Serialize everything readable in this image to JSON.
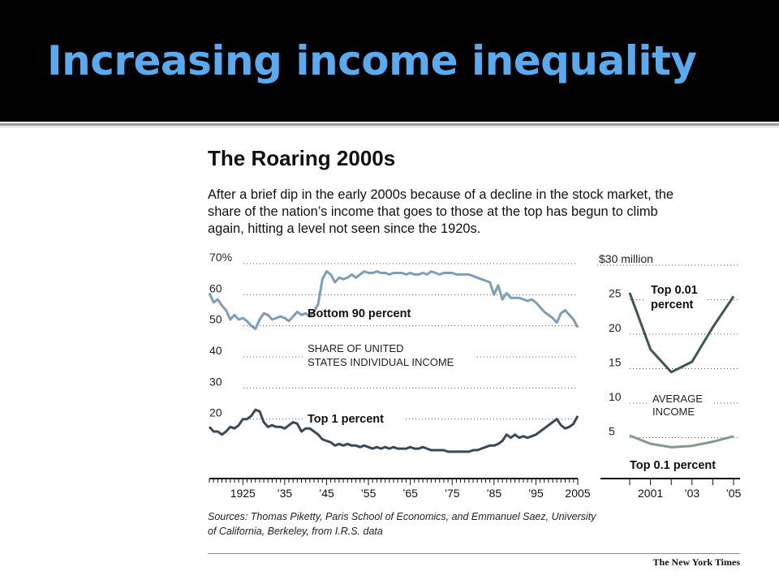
{
  "slide": {
    "title": "Increasing income inequality"
  },
  "figure": {
    "title": "The Roaring 2000s",
    "subtitle": "After a brief dip in the early 2000s because of a decline in the stock market, the share of the nation’s income that goes to those at the top has begun to climb again, hitting a level not seen since the 1920s.",
    "source": "Sources: Thomas Piketty, Paris School of Economics, and Emmanuel Saez, University of California, Berkeley, from I.R.S. data",
    "credit": "The New York Times"
  },
  "colors": {
    "bottom90": "#7f9db8",
    "top1": "#3a4a55",
    "top001": "#3d5a47",
    "top01": "#7f9c88",
    "title": "#5aaaf0"
  },
  "chart_data": [
    {
      "type": "line",
      "annotation": "SHARE OF UNITED STATES INDIVIDUAL INCOME",
      "yticks": [
        {
          "label": "70%",
          "value": 70
        },
        {
          "label": "60",
          "value": 60
        },
        {
          "label": "50",
          "value": 50
        },
        {
          "label": "40",
          "value": 40
        },
        {
          "label": "30",
          "value": 30
        },
        {
          "label": "20",
          "value": 20
        }
      ],
      "xticks": [
        {
          "label": "1925",
          "value": 1925
        },
        {
          "label": "’35",
          "value": 1935
        },
        {
          "label": "’45",
          "value": 1945
        },
        {
          "label": "’55",
          "value": 1955
        },
        {
          "label": "’65",
          "value": 1965
        },
        {
          "label": "’75",
          "value": 1975
        },
        {
          "label": "’85",
          "value": 1985
        },
        {
          "label": "’95",
          "value": 1995
        },
        {
          "label": "2005",
          "value": 2005
        }
      ],
      "xlim": [
        1917,
        2005
      ],
      "ylim": [
        10,
        70
      ],
      "series": [
        {
          "name": "Bottom 90 percent",
          "x": [
            1917,
            1918,
            1919,
            1920,
            1921,
            1922,
            1923,
            1924,
            1925,
            1926,
            1927,
            1928,
            1929,
            1930,
            1931,
            1932,
            1933,
            1934,
            1935,
            1936,
            1937,
            1938,
            1939,
            1940,
            1941,
            1942,
            1943,
            1944,
            1945,
            1946,
            1947,
            1948,
            1949,
            1950,
            1951,
            1952,
            1953,
            1954,
            1955,
            1956,
            1957,
            1958,
            1959,
            1960,
            1961,
            1962,
            1963,
            1964,
            1965,
            1966,
            1967,
            1968,
            1969,
            1970,
            1971,
            1972,
            1973,
            1974,
            1975,
            1976,
            1977,
            1978,
            1979,
            1980,
            1981,
            1982,
            1983,
            1984,
            1985,
            1986,
            1987,
            1988,
            1989,
            1990,
            1991,
            1992,
            1993,
            1994,
            1995,
            1996,
            1997,
            1998,
            1999,
            2000,
            2001,
            2002,
            2003,
            2004,
            2005
          ],
          "values": [
            60.5,
            57.5,
            58.5,
            56.5,
            55,
            52,
            53.5,
            52,
            52.5,
            51.5,
            50,
            49,
            52,
            54,
            53.5,
            52,
            52.5,
            53,
            52.5,
            51.5,
            53,
            54.5,
            53.5,
            54,
            53,
            54.5,
            57,
            65,
            67.5,
            66.5,
            64,
            65.5,
            65,
            65.5,
            66.5,
            65.5,
            66.5,
            67.5,
            67,
            67,
            67.5,
            67,
            67,
            66.5,
            67,
            67,
            67,
            66.5,
            67,
            66.5,
            66.5,
            67,
            66.5,
            67.5,
            67,
            66.5,
            67,
            67,
            67,
            66.5,
            66.5,
            66.5,
            66.5,
            66,
            65.5,
            65,
            64.5,
            64,
            60,
            63,
            58.5,
            60.5,
            59,
            59,
            59,
            58.5,
            58,
            58.5,
            57.5,
            56,
            54.5,
            53.5,
            52.5,
            51,
            54,
            55,
            53.5,
            52,
            49.5
          ]
        },
        {
          "name": "Top 1 percent",
          "x": [
            1917,
            1918,
            1919,
            1920,
            1921,
            1922,
            1923,
            1924,
            1925,
            1926,
            1927,
            1928,
            1929,
            1930,
            1931,
            1932,
            1933,
            1934,
            1935,
            1936,
            1937,
            1938,
            1939,
            1940,
            1941,
            1942,
            1943,
            1944,
            1945,
            1946,
            1947,
            1948,
            1949,
            1950,
            1951,
            1952,
            1953,
            1954,
            1955,
            1956,
            1957,
            1958,
            1959,
            1960,
            1961,
            1962,
            1963,
            1964,
            1965,
            1966,
            1967,
            1968,
            1969,
            1970,
            1971,
            1972,
            1973,
            1974,
            1975,
            1976,
            1977,
            1978,
            1979,
            1980,
            1981,
            1982,
            1983,
            1984,
            1985,
            1986,
            1987,
            1988,
            1989,
            1990,
            1991,
            1992,
            1993,
            1994,
            1995,
            1996,
            1997,
            1998,
            1999,
            2000,
            2001,
            2002,
            2003,
            2004,
            2005
          ],
          "values": [
            17.5,
            16,
            16,
            15,
            16,
            17.5,
            17,
            18,
            20,
            20,
            21,
            23,
            22.5,
            19,
            17.5,
            18,
            17.5,
            17.5,
            17,
            18,
            19,
            18.5,
            16,
            17,
            17,
            16,
            15,
            13.5,
            13,
            12.5,
            11.5,
            12,
            11.5,
            12,
            11.5,
            11.5,
            11,
            11.5,
            11,
            10.5,
            11,
            10.5,
            11,
            10.5,
            11,
            10.5,
            10.5,
            10.5,
            11,
            10.5,
            10.5,
            11,
            10.5,
            10,
            10,
            10,
            10,
            9.5,
            9.5,
            9.5,
            9.5,
            9.5,
            9.5,
            10,
            10,
            10.5,
            11,
            11.5,
            11.5,
            12,
            13,
            15,
            14,
            15,
            14,
            14.5,
            14,
            14.5,
            15,
            16,
            17,
            18,
            19,
            20,
            18,
            17,
            17.5,
            18.5,
            21
          ]
        }
      ]
    },
    {
      "type": "line",
      "annotation": "AVERAGE INCOME",
      "yticks": [
        {
          "label": "$30 million",
          "value": 30
        },
        {
          "label": "25",
          "value": 25
        },
        {
          "label": "20",
          "value": 20
        },
        {
          "label": "15",
          "value": 15
        },
        {
          "label": "10",
          "value": 10
        },
        {
          "label": "5",
          "value": 5
        }
      ],
      "xticks": [
        {
          "label": "2001",
          "value": 2001
        },
        {
          "label": "’03",
          "value": 2003
        },
        {
          "label": "’05",
          "value": 2005
        }
      ],
      "xlim": [
        2000,
        2005
      ],
      "ylim": [
        0,
        30
      ],
      "series": [
        {
          "name": "Top 0.01 percent",
          "x": [
            2000,
            2001,
            2002,
            2003,
            2004,
            2005
          ],
          "values": [
            26,
            17.8,
            14.5,
            16,
            21,
            25.5
          ]
        },
        {
          "name": "Top 0.1 percent",
          "x": [
            2000,
            2001,
            2002,
            2003,
            2004,
            2005
          ],
          "values": [
            5.3,
            4.1,
            3.6,
            3.8,
            4.4,
            5.2
          ]
        }
      ]
    }
  ]
}
